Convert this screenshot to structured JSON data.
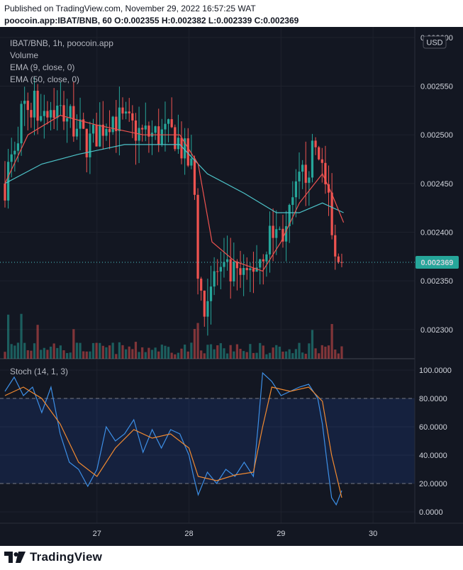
{
  "header": {
    "published": "Published on TradingView.com, November 29, 2022 16:57:25 WAT",
    "symbol_line": "poocoin.app:IBAT/BNB, 60 O:0.002355 H:0.002382 L:0.002339 C:0.002369"
  },
  "legend": {
    "title": "IBAT/BNB, 1h, poocoin.app",
    "volume": "Volume",
    "ema9": "EMA (9, close, 0)",
    "ema50": "EMA (50, close, 0)",
    "stoch": "Stoch (14, 1, 3)"
  },
  "currency": "USD",
  "last_price_label": "0.002369",
  "footer_brand": "TradingView",
  "colors": {
    "up": "#26a69a",
    "down": "#ef5350",
    "ema9": "#ef5350",
    "ema50": "#4dc4c9",
    "k": "#3d8fe6",
    "d": "#f28a30"
  },
  "chart_data": [
    {
      "type": "candlestick",
      "title": "IBAT/BNB, 1h, poocoin.app",
      "x_ticks": [
        "27",
        "28",
        "29",
        "30"
      ],
      "y_ticks": [
        "0.002600",
        "0.002550",
        "0.002500",
        "0.002450",
        "0.002400",
        "0.002350",
        "0.002300"
      ],
      "ylim": [
        0.00227,
        0.002605
      ],
      "last_price": 0.002369,
      "key_points": [
        {
          "x": 26.0,
          "close": 0.00245
        },
        {
          "x": 26.2,
          "close": 0.00253
        },
        {
          "x": 26.45,
          "close": 0.00253
        },
        {
          "x": 26.7,
          "close": 0.00252
        },
        {
          "x": 26.9,
          "close": 0.00249
        },
        {
          "x": 27.15,
          "close": 0.00252
        },
        {
          "x": 27.5,
          "close": 0.0025
        },
        {
          "x": 27.85,
          "close": 0.0025
        },
        {
          "x": 28.05,
          "close": 0.00246
        },
        {
          "x": 28.12,
          "close": 0.00232
        },
        {
          "x": 28.3,
          "close": 0.00236
        },
        {
          "x": 28.6,
          "close": 0.00235
        },
        {
          "x": 28.8,
          "close": 0.00238
        },
        {
          "x": 28.9,
          "close": 0.0024
        },
        {
          "x": 29.05,
          "close": 0.0024
        },
        {
          "x": 29.2,
          "close": 0.00245
        },
        {
          "x": 29.4,
          "close": 0.00249
        },
        {
          "x": 29.5,
          "close": 0.00244
        },
        {
          "x": 29.58,
          "close": 0.00237
        },
        {
          "x": 29.66,
          "close": 0.002369
        }
      ],
      "series": [
        {
          "name": "EMA (9, close, 0)",
          "points": [
            [
              26.0,
              0.00245
            ],
            [
              26.25,
              0.0025
            ],
            [
              26.6,
              0.00252
            ],
            [
              27.0,
              0.00251
            ],
            [
              27.5,
              0.0025
            ],
            [
              27.9,
              0.0025
            ],
            [
              28.1,
              0.00247
            ],
            [
              28.25,
              0.00239
            ],
            [
              28.5,
              0.00237
            ],
            [
              28.8,
              0.00236
            ],
            [
              29.0,
              0.00239
            ],
            [
              29.2,
              0.00243
            ],
            [
              29.45,
              0.00246
            ],
            [
              29.55,
              0.00244
            ],
            [
              29.68,
              0.00241
            ]
          ]
        },
        {
          "name": "EMA (50, close, 0)",
          "points": [
            [
              26.0,
              0.00245
            ],
            [
              26.4,
              0.00247
            ],
            [
              26.8,
              0.00248
            ],
            [
              27.3,
              0.00249
            ],
            [
              27.9,
              0.00249
            ],
            [
              28.2,
              0.00246
            ],
            [
              28.6,
              0.00244
            ],
            [
              28.95,
              0.00242
            ],
            [
              29.2,
              0.00242
            ],
            [
              29.45,
              0.00243
            ],
            [
              29.68,
              0.00242
            ]
          ]
        }
      ],
      "volume_bars": 104
    },
    {
      "type": "line",
      "title": "Stoch (14, 1, 3)",
      "y_ticks": [
        "100.0000",
        "80.0000",
        "60.0000",
        "40.0000",
        "20.0000",
        "0.0000"
      ],
      "ylim": [
        -8,
        104
      ],
      "bands": [
        80,
        20
      ],
      "series": [
        {
          "name": "%K",
          "points": [
            [
              26.0,
              85
            ],
            [
              26.1,
              95
            ],
            [
              26.2,
              82
            ],
            [
              26.3,
              88
            ],
            [
              26.4,
              70
            ],
            [
              26.5,
              88
            ],
            [
              26.6,
              55
            ],
            [
              26.7,
              35
            ],
            [
              26.8,
              30
            ],
            [
              26.9,
              18
            ],
            [
              27.0,
              30
            ],
            [
              27.1,
              60
            ],
            [
              27.2,
              50
            ],
            [
              27.3,
              55
            ],
            [
              27.4,
              65
            ],
            [
              27.5,
              42
            ],
            [
              27.6,
              58
            ],
            [
              27.7,
              45
            ],
            [
              27.8,
              58
            ],
            [
              27.9,
              55
            ],
            [
              28.0,
              40
            ],
            [
              28.05,
              25
            ],
            [
              28.1,
              12
            ],
            [
              28.2,
              28
            ],
            [
              28.3,
              20
            ],
            [
              28.4,
              30
            ],
            [
              28.5,
              25
            ],
            [
              28.6,
              35
            ],
            [
              28.7,
              25
            ],
            [
              28.75,
              60
            ],
            [
              28.8,
              98
            ],
            [
              28.9,
              92
            ],
            [
              29.0,
              82
            ],
            [
              29.1,
              85
            ],
            [
              29.2,
              88
            ],
            [
              29.3,
              90
            ],
            [
              29.4,
              80
            ],
            [
              29.45,
              62
            ],
            [
              29.5,
              35
            ],
            [
              29.55,
              10
            ],
            [
              29.6,
              5
            ],
            [
              29.66,
              15
            ]
          ]
        },
        {
          "name": "%D",
          "points": [
            [
              26.0,
              82
            ],
            [
              26.2,
              88
            ],
            [
              26.4,
              80
            ],
            [
              26.6,
              62
            ],
            [
              26.8,
              35
            ],
            [
              27.0,
              25
            ],
            [
              27.2,
              45
            ],
            [
              27.4,
              58
            ],
            [
              27.6,
              52
            ],
            [
              27.8,
              55
            ],
            [
              28.0,
              45
            ],
            [
              28.1,
              25
            ],
            [
              28.3,
              22
            ],
            [
              28.5,
              26
            ],
            [
              28.7,
              28
            ],
            [
              28.8,
              60
            ],
            [
              28.9,
              88
            ],
            [
              29.1,
              85
            ],
            [
              29.3,
              88
            ],
            [
              29.45,
              78
            ],
            [
              29.55,
              40
            ],
            [
              29.66,
              10
            ]
          ]
        }
      ]
    }
  ]
}
